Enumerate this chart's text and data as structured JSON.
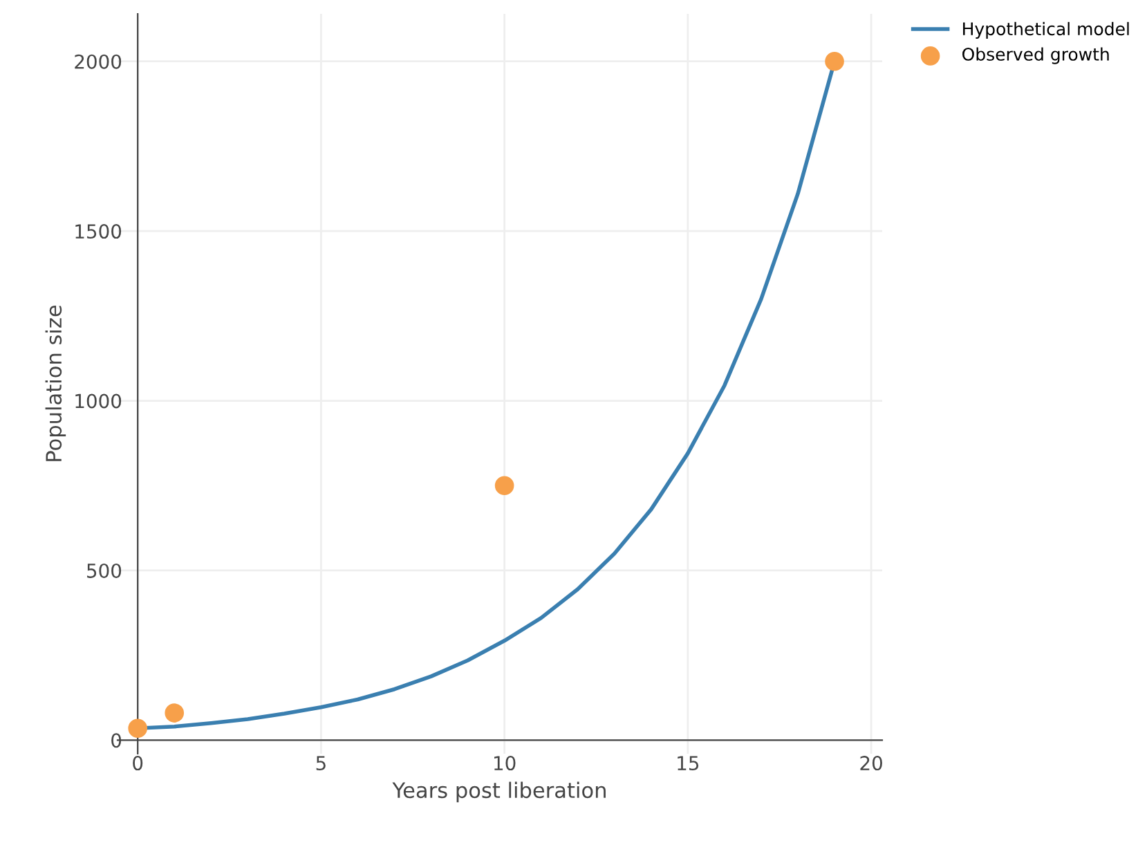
{
  "chart_data": {
    "type": "line",
    "xlabel": "Years post liberation",
    "ylabel": "Population size",
    "xlim": [
      -0.55,
      20.3
    ],
    "ylim": [
      -40,
      2140
    ],
    "xticks": [
      0,
      5,
      10,
      15,
      20
    ],
    "yticks": [
      0,
      500,
      1000,
      1500,
      2000
    ],
    "grid": true,
    "legend": "top right",
    "series": [
      {
        "name": "Hypothetical model",
        "color": "#3a7fb0",
        "marker": "none",
        "line_style": "solid",
        "x": [
          0,
          1,
          2,
          3,
          4,
          5,
          6,
          7,
          8,
          9,
          10,
          11,
          12,
          13,
          14,
          15,
          16,
          17,
          18,
          19
        ],
        "values": [
          35,
          40,
          50,
          62,
          78,
          97,
          120,
          150,
          188,
          235,
          293,
          360,
          445,
          550,
          680,
          845,
          1045,
          1300,
          1610,
          2000
        ]
      },
      {
        "name": "Observed growth",
        "type": "scatter",
        "color": "#f7a04a",
        "marker": "circle",
        "x": [
          0,
          1,
          10,
          19
        ],
        "values": [
          35,
          80,
          750,
          2000
        ]
      }
    ]
  }
}
